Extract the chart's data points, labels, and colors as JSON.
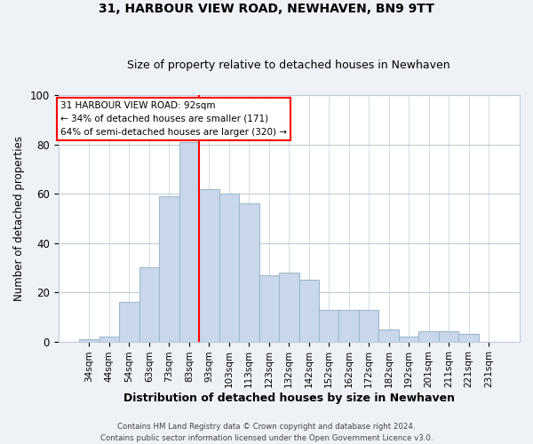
{
  "title": "31, HARBOUR VIEW ROAD, NEWHAVEN, BN9 9TT",
  "subtitle": "Size of property relative to detached houses in Newhaven",
  "xlabel": "Distribution of detached houses by size in Newhaven",
  "ylabel": "Number of detached properties",
  "bar_labels": [
    "34sqm",
    "44sqm",
    "54sqm",
    "63sqm",
    "73sqm",
    "83sqm",
    "93sqm",
    "103sqm",
    "113sqm",
    "123sqm",
    "132sqm",
    "142sqm",
    "152sqm",
    "162sqm",
    "172sqm",
    "182sqm",
    "192sqm",
    "201sqm",
    "211sqm",
    "221sqm",
    "231sqm"
  ],
  "bar_heights": [
    1,
    2,
    16,
    30,
    59,
    81,
    62,
    60,
    56,
    27,
    28,
    25,
    13,
    13,
    13,
    5,
    2,
    4,
    4,
    3,
    0
  ],
  "bar_color": "#c8d8ea",
  "bar_edge_color": "#a0b8cc",
  "vline_x_index": 5.5,
  "vline_color": "red",
  "annotation_line1": "31 HARBOUR VIEW ROAD: 92sqm",
  "annotation_line2": "← 34% of detached houses are smaller (171)",
  "annotation_line3": "64% of semi-detached houses are larger (320) →",
  "ylim": [
    0,
    100
  ],
  "footer_line1": "Contains HM Land Registry data © Crown copyright and database right 2024.",
  "footer_line2": "Contains public sector information licensed under the Open Government Licence v3.0.",
  "bg_color": "#eef2f7",
  "plot_bg_color": "#ffffff",
  "grid_color": "#c0ccd8",
  "title_fontsize": 10,
  "subtitle_fontsize": 9
}
